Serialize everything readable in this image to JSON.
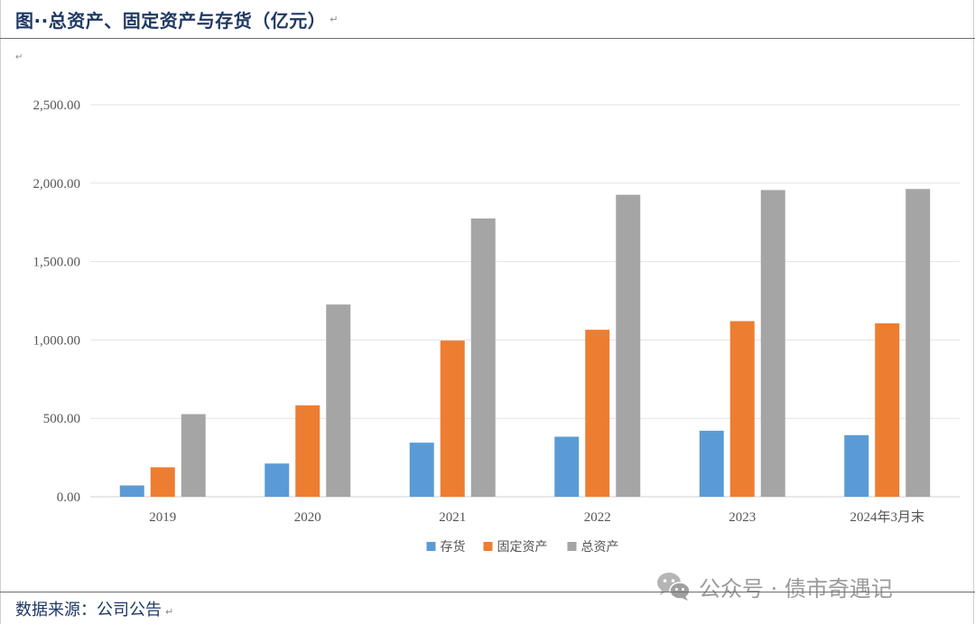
{
  "header": {
    "title": "图··总资产、固定资产与存货（亿元）",
    "mark": "↵"
  },
  "empty_para_mark": "↵",
  "chart_data": {
    "type": "bar",
    "title": "",
    "xlabel": "",
    "ylabel": "",
    "categories": [
      "2019",
      "2020",
      "2021",
      "2022",
      "2023",
      "2024年3月末"
    ],
    "series": [
      {
        "name": "存货",
        "color": "#5b9bd5",
        "values": [
          72,
          212,
          345,
          383,
          421,
          393
        ]
      },
      {
        "name": "固定资产",
        "color": "#ed7d31",
        "values": [
          188,
          583,
          996,
          1065,
          1120,
          1106
        ]
      },
      {
        "name": "总资产",
        "color": "#a5a5a5",
        "values": [
          527,
          1226,
          1775,
          1926,
          1956,
          1963
        ]
      }
    ],
    "yticks": [
      "0.00",
      "500.00",
      "1,000.00",
      "1,500.00",
      "2,000.00",
      "2,500.00"
    ],
    "ylim": [
      0,
      2500
    ],
    "grid": true,
    "legend_position": "bottom-center"
  },
  "watermark": {
    "text": "公众号 · 债市奇遇记",
    "icon": "wechat-icon"
  },
  "source": {
    "text": "数据来源：公司公告",
    "mark": "↵"
  }
}
